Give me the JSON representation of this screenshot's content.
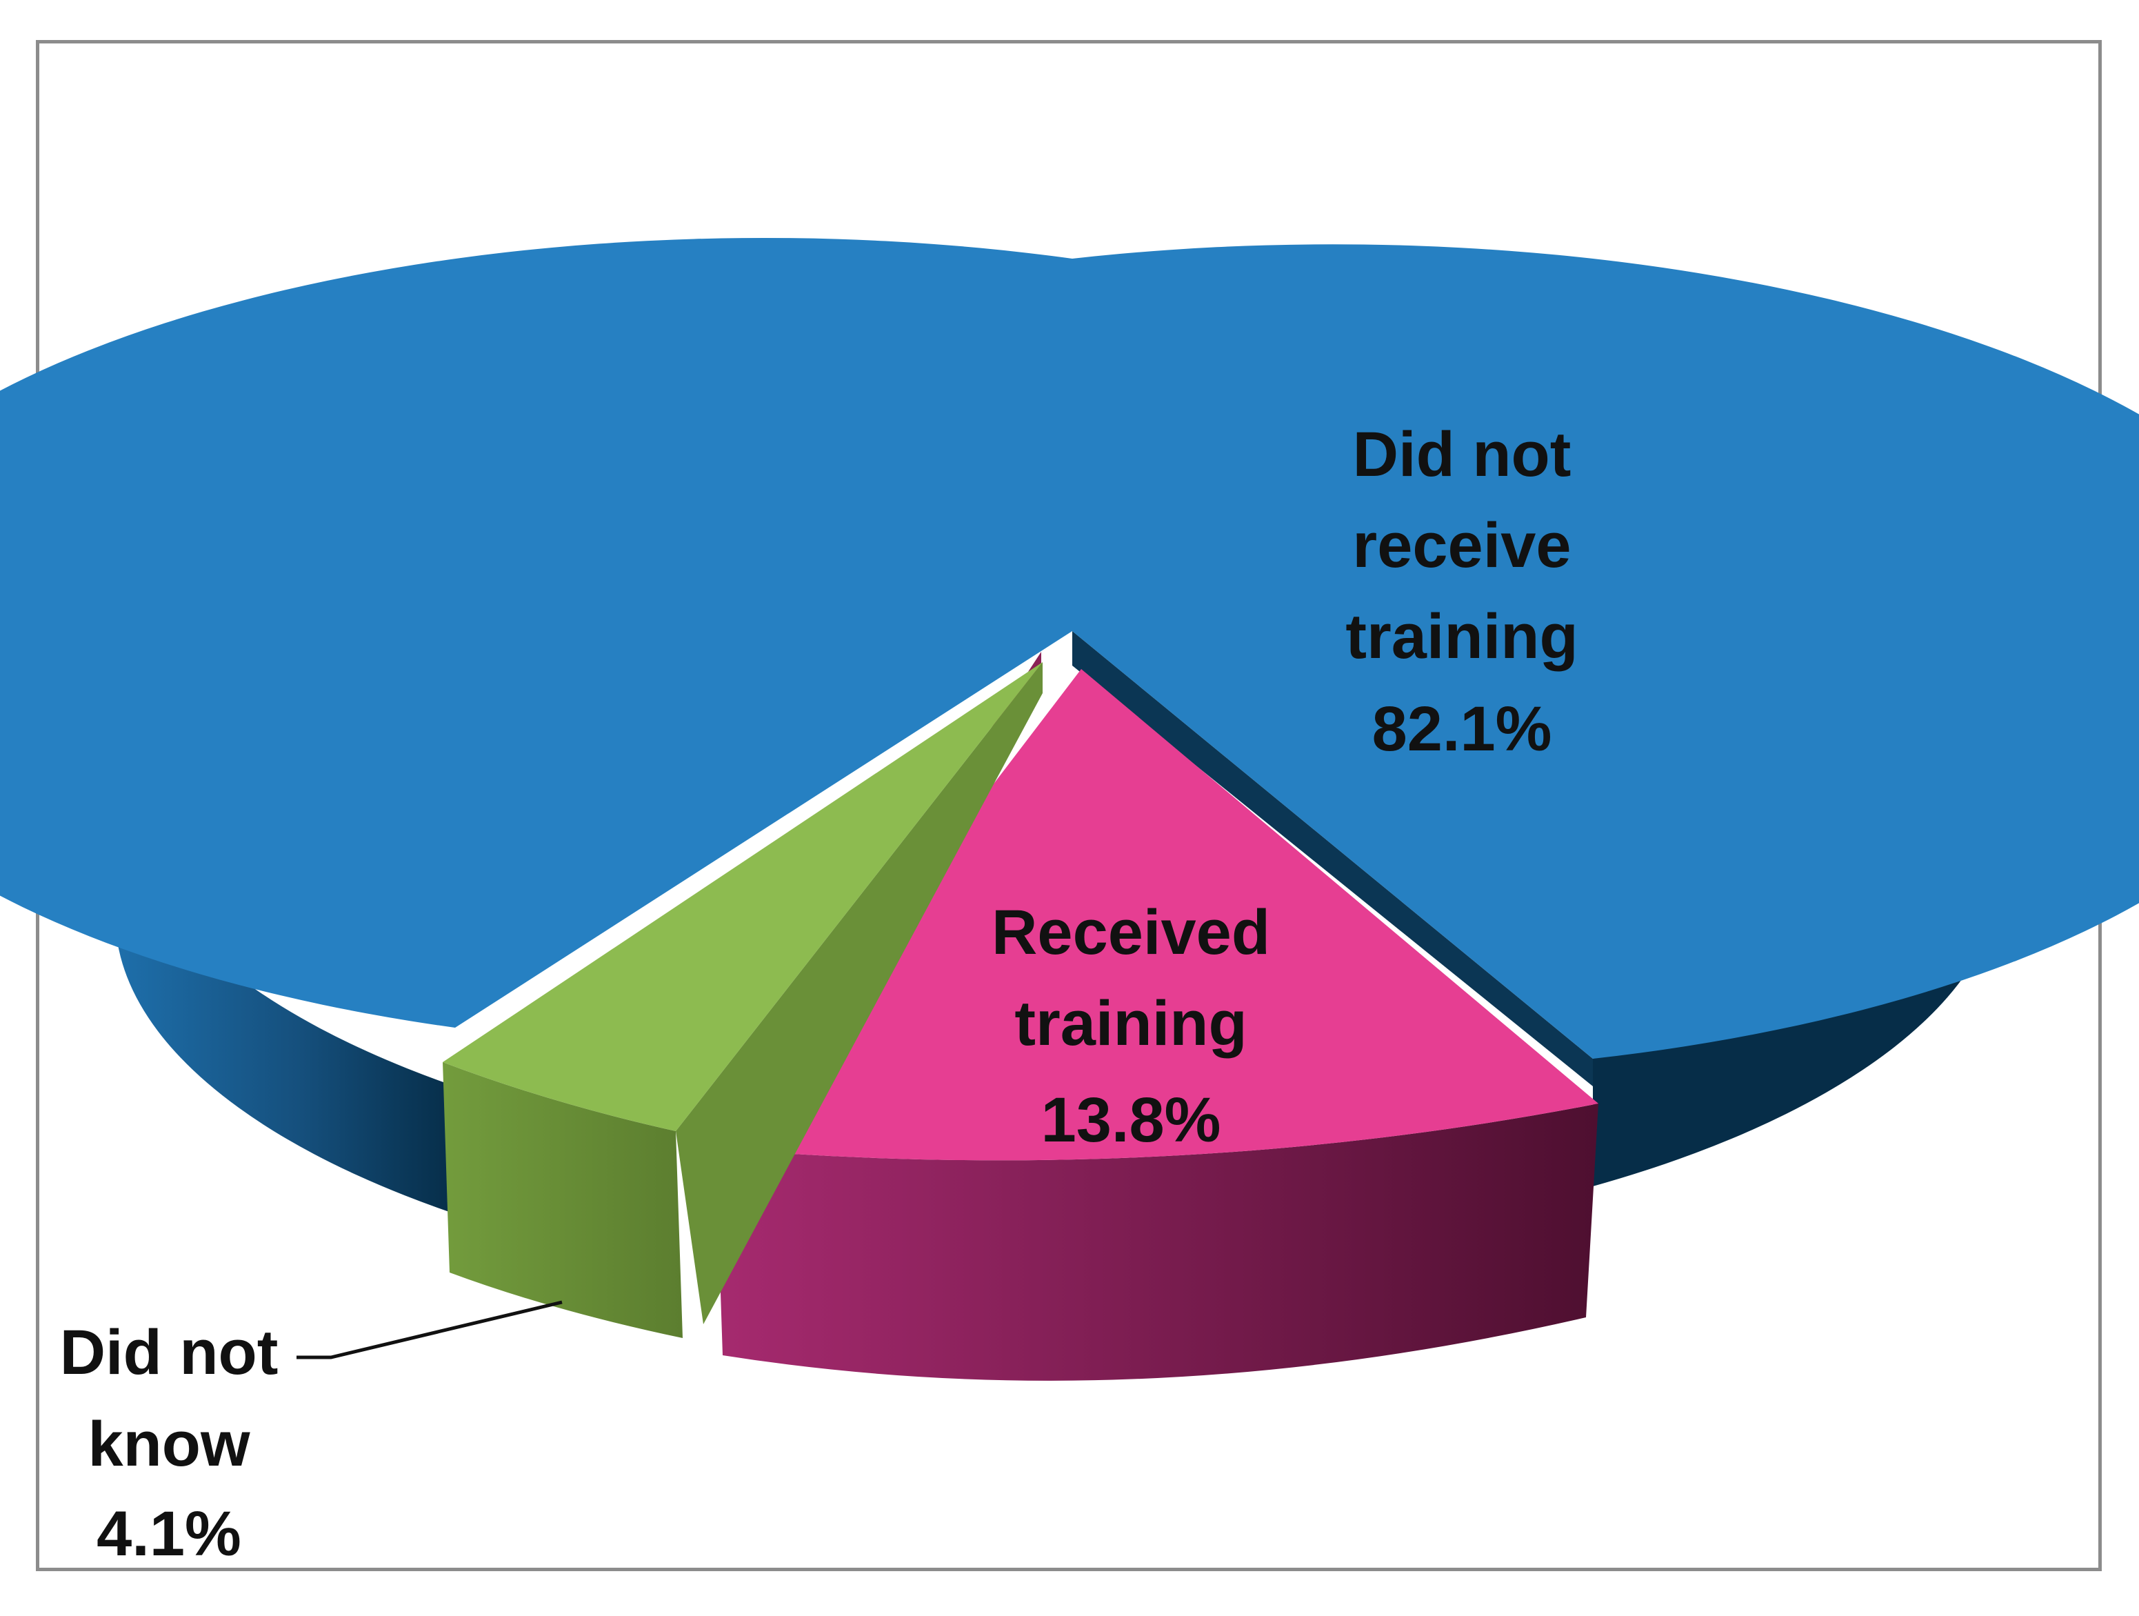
{
  "chart_data": {
    "type": "pie",
    "style": "3d-exploded",
    "title": "",
    "legend": "none",
    "slices": [
      {
        "label_lines": [
          "Did not",
          "receive",
          "training"
        ],
        "value_text": "82.1%",
        "value": 82.1,
        "color": "#2680C2",
        "side_color": "#1B5F91",
        "dark_color": "#062D48"
      },
      {
        "label_lines": [
          "Received",
          "training"
        ],
        "value_text": "13.8%",
        "value": 13.8,
        "color": "#E63E92",
        "side_color": "#A0266A",
        "dark_color": "#521031"
      },
      {
        "label_lines": [
          "Did not",
          "know"
        ],
        "value_text": "4.1%",
        "value": 4.1,
        "color": "#8DBB50",
        "side_color": "#6A9038",
        "dark_color": "#55742B"
      }
    ]
  }
}
